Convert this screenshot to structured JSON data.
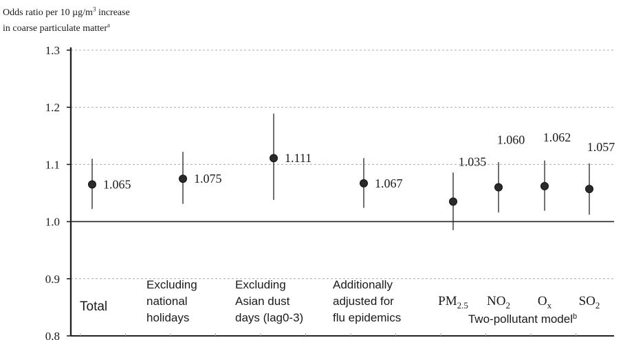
{
  "chart_data": {
    "type": "scatter",
    "title": "",
    "ylabel": {
      "line1_pre": "Odds ratio per 10 µg/m",
      "line1_sup": "3",
      "line1_post": " increase",
      "line2": "in coarse particulate matter",
      "line2_sup": "a"
    },
    "ylim": [
      0.8,
      1.3
    ],
    "yticks": [
      "0.8",
      "0.9",
      "1.0",
      "1.1",
      "1.2",
      "1.3"
    ],
    "ytick_values": [
      0.8,
      0.9,
      1.0,
      1.1,
      1.2,
      1.3
    ],
    "grid": "dotted horizontal",
    "reference_line": 1.0,
    "points": [
      {
        "label": "1.065",
        "x": 1,
        "value": 1.065,
        "lower": 1.022,
        "upper": 1.11
      },
      {
        "label": "1.075",
        "x": 2,
        "value": 1.075,
        "lower": 1.031,
        "upper": 1.122
      },
      {
        "label": "1.111",
        "x": 3,
        "value": 1.111,
        "lower": 1.038,
        "upper": 1.189
      },
      {
        "label": "1.067",
        "x": 4,
        "value": 1.067,
        "lower": 1.024,
        "upper": 1.111
      },
      {
        "label": "1.035",
        "x": 5,
        "value": 1.035,
        "lower": 0.985,
        "upper": 1.086
      },
      {
        "label": "1.060",
        "x": 6,
        "value": 1.06,
        "lower": 1.016,
        "upper": 1.104
      },
      {
        "label": "1.062",
        "x": 7,
        "value": 1.062,
        "lower": 1.019,
        "upper": 1.107
      },
      {
        "label": "1.057",
        "x": 8,
        "value": 1.057,
        "lower": 1.012,
        "upper": 1.102
      }
    ],
    "categories": [
      {
        "lines": [
          "Total"
        ]
      },
      {
        "lines": [
          "Excluding",
          "national",
          "holidays"
        ]
      },
      {
        "lines": [
          "Excluding",
          "Asian dust",
          "days (lag0-3)"
        ]
      },
      {
        "lines": [
          "Additionally",
          "adjusted for",
          "flu epidemics"
        ]
      },
      {
        "main": "PM",
        "sub": "2.5"
      },
      {
        "main": "NO",
        "sub": "2"
      },
      {
        "main": "O",
        "sub": "x"
      },
      {
        "main": "SO",
        "sub": "2"
      }
    ],
    "group_label": {
      "text": "Two-pollutant model",
      "sup": "b"
    },
    "colors": {
      "marker": "#2a2a2a",
      "line": "#222222",
      "grid": "#aaaaaa"
    }
  }
}
